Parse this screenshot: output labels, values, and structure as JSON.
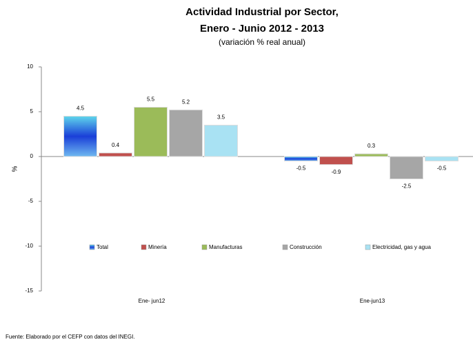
{
  "chart_data": {
    "type": "bar",
    "title": "Actividad Industrial por Sector,",
    "title_line2": "Enero - Junio 2012 - 2013",
    "subtitle": "(variación % real anual)",
    "y_label": "%",
    "source": "Fuente: Elaborado por el CEFP con datos del INEGI.",
    "categories": [
      "Ene- jun12",
      "Ene-jun13"
    ],
    "series": [
      {
        "name": "Total",
        "color": "#1f5fd1",
        "values": [
          4.5,
          -0.5
        ]
      },
      {
        "name": "Minería",
        "color": "#c0504d",
        "values": [
          0.4,
          -0.9
        ]
      },
      {
        "name": "Manufacturas",
        "color": "#9bbb59",
        "values": [
          5.5,
          0.3
        ]
      },
      {
        "name": "Construcción",
        "color": "#a6a6a6",
        "values": [
          5.2,
          -2.5
        ]
      },
      {
        "name": "Electricidad, gas y agua",
        "color": "#a9e2f3",
        "values": [
          3.5,
          -0.5
        ]
      }
    ],
    "ylim": [
      -15,
      10
    ],
    "yticks": [
      -15,
      -10,
      -5,
      0,
      5,
      10
    ],
    "legend": "inside-bottom"
  }
}
